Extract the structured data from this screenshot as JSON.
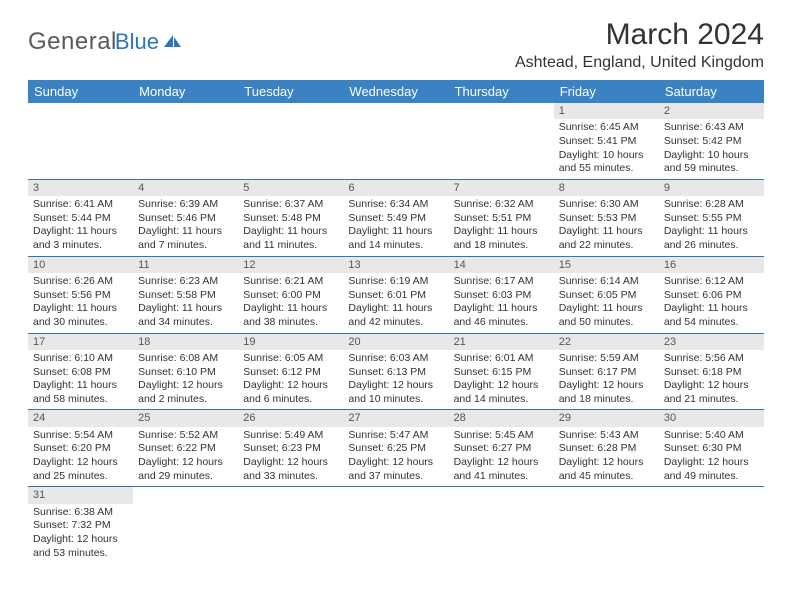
{
  "logo": {
    "word1": "General",
    "word2": "Blue"
  },
  "header": {
    "title": "March 2024",
    "location": "Ashtead, England, United Kingdom"
  },
  "colors": {
    "header_bg": "#3a82c4",
    "header_text": "#ffffff",
    "daynum_bg": "#e8e8e8",
    "row_border": "#2a76b8",
    "logo_blue": "#2a76b8",
    "logo_grey": "#5a5a5a"
  },
  "daysOfWeek": [
    "Sunday",
    "Monday",
    "Tuesday",
    "Wednesday",
    "Thursday",
    "Friday",
    "Saturday"
  ],
  "weeks": [
    [
      null,
      null,
      null,
      null,
      null,
      {
        "n": "1",
        "sr": "Sunrise: 6:45 AM",
        "ss": "Sunset: 5:41 PM",
        "dl": "Daylight: 10 hours and 55 minutes."
      },
      {
        "n": "2",
        "sr": "Sunrise: 6:43 AM",
        "ss": "Sunset: 5:42 PM",
        "dl": "Daylight: 10 hours and 59 minutes."
      }
    ],
    [
      {
        "n": "3",
        "sr": "Sunrise: 6:41 AM",
        "ss": "Sunset: 5:44 PM",
        "dl": "Daylight: 11 hours and 3 minutes."
      },
      {
        "n": "4",
        "sr": "Sunrise: 6:39 AM",
        "ss": "Sunset: 5:46 PM",
        "dl": "Daylight: 11 hours and 7 minutes."
      },
      {
        "n": "5",
        "sr": "Sunrise: 6:37 AM",
        "ss": "Sunset: 5:48 PM",
        "dl": "Daylight: 11 hours and 11 minutes."
      },
      {
        "n": "6",
        "sr": "Sunrise: 6:34 AM",
        "ss": "Sunset: 5:49 PM",
        "dl": "Daylight: 11 hours and 14 minutes."
      },
      {
        "n": "7",
        "sr": "Sunrise: 6:32 AM",
        "ss": "Sunset: 5:51 PM",
        "dl": "Daylight: 11 hours and 18 minutes."
      },
      {
        "n": "8",
        "sr": "Sunrise: 6:30 AM",
        "ss": "Sunset: 5:53 PM",
        "dl": "Daylight: 11 hours and 22 minutes."
      },
      {
        "n": "9",
        "sr": "Sunrise: 6:28 AM",
        "ss": "Sunset: 5:55 PM",
        "dl": "Daylight: 11 hours and 26 minutes."
      }
    ],
    [
      {
        "n": "10",
        "sr": "Sunrise: 6:26 AM",
        "ss": "Sunset: 5:56 PM",
        "dl": "Daylight: 11 hours and 30 minutes."
      },
      {
        "n": "11",
        "sr": "Sunrise: 6:23 AM",
        "ss": "Sunset: 5:58 PM",
        "dl": "Daylight: 11 hours and 34 minutes."
      },
      {
        "n": "12",
        "sr": "Sunrise: 6:21 AM",
        "ss": "Sunset: 6:00 PM",
        "dl": "Daylight: 11 hours and 38 minutes."
      },
      {
        "n": "13",
        "sr": "Sunrise: 6:19 AM",
        "ss": "Sunset: 6:01 PM",
        "dl": "Daylight: 11 hours and 42 minutes."
      },
      {
        "n": "14",
        "sr": "Sunrise: 6:17 AM",
        "ss": "Sunset: 6:03 PM",
        "dl": "Daylight: 11 hours and 46 minutes."
      },
      {
        "n": "15",
        "sr": "Sunrise: 6:14 AM",
        "ss": "Sunset: 6:05 PM",
        "dl": "Daylight: 11 hours and 50 minutes."
      },
      {
        "n": "16",
        "sr": "Sunrise: 6:12 AM",
        "ss": "Sunset: 6:06 PM",
        "dl": "Daylight: 11 hours and 54 minutes."
      }
    ],
    [
      {
        "n": "17",
        "sr": "Sunrise: 6:10 AM",
        "ss": "Sunset: 6:08 PM",
        "dl": "Daylight: 11 hours and 58 minutes."
      },
      {
        "n": "18",
        "sr": "Sunrise: 6:08 AM",
        "ss": "Sunset: 6:10 PM",
        "dl": "Daylight: 12 hours and 2 minutes."
      },
      {
        "n": "19",
        "sr": "Sunrise: 6:05 AM",
        "ss": "Sunset: 6:12 PM",
        "dl": "Daylight: 12 hours and 6 minutes."
      },
      {
        "n": "20",
        "sr": "Sunrise: 6:03 AM",
        "ss": "Sunset: 6:13 PM",
        "dl": "Daylight: 12 hours and 10 minutes."
      },
      {
        "n": "21",
        "sr": "Sunrise: 6:01 AM",
        "ss": "Sunset: 6:15 PM",
        "dl": "Daylight: 12 hours and 14 minutes."
      },
      {
        "n": "22",
        "sr": "Sunrise: 5:59 AM",
        "ss": "Sunset: 6:17 PM",
        "dl": "Daylight: 12 hours and 18 minutes."
      },
      {
        "n": "23",
        "sr": "Sunrise: 5:56 AM",
        "ss": "Sunset: 6:18 PM",
        "dl": "Daylight: 12 hours and 21 minutes."
      }
    ],
    [
      {
        "n": "24",
        "sr": "Sunrise: 5:54 AM",
        "ss": "Sunset: 6:20 PM",
        "dl": "Daylight: 12 hours and 25 minutes."
      },
      {
        "n": "25",
        "sr": "Sunrise: 5:52 AM",
        "ss": "Sunset: 6:22 PM",
        "dl": "Daylight: 12 hours and 29 minutes."
      },
      {
        "n": "26",
        "sr": "Sunrise: 5:49 AM",
        "ss": "Sunset: 6:23 PM",
        "dl": "Daylight: 12 hours and 33 minutes."
      },
      {
        "n": "27",
        "sr": "Sunrise: 5:47 AM",
        "ss": "Sunset: 6:25 PM",
        "dl": "Daylight: 12 hours and 37 minutes."
      },
      {
        "n": "28",
        "sr": "Sunrise: 5:45 AM",
        "ss": "Sunset: 6:27 PM",
        "dl": "Daylight: 12 hours and 41 minutes."
      },
      {
        "n": "29",
        "sr": "Sunrise: 5:43 AM",
        "ss": "Sunset: 6:28 PM",
        "dl": "Daylight: 12 hours and 45 minutes."
      },
      {
        "n": "30",
        "sr": "Sunrise: 5:40 AM",
        "ss": "Sunset: 6:30 PM",
        "dl": "Daylight: 12 hours and 49 minutes."
      }
    ],
    [
      {
        "n": "31",
        "sr": "Sunrise: 6:38 AM",
        "ss": "Sunset: 7:32 PM",
        "dl": "Daylight: 12 hours and 53 minutes."
      },
      null,
      null,
      null,
      null,
      null,
      null
    ]
  ]
}
